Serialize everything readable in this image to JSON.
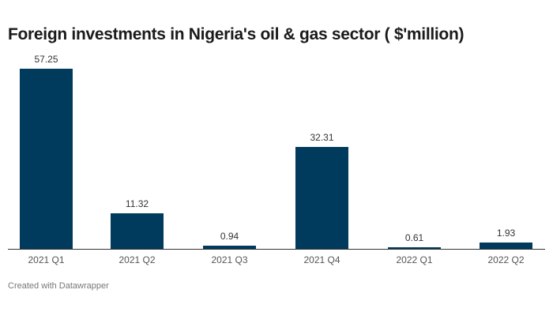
{
  "chart_data": {
    "type": "bar",
    "title": "Foreign investments in Nigeria's oil & gas sector ( $'million)",
    "categories": [
      "2021 Q1",
      "2021 Q2",
      "2021 Q3",
      "2021 Q4",
      "2022 Q1",
      "2022 Q2"
    ],
    "values": [
      57.25,
      11.32,
      0.94,
      32.31,
      0.61,
      1.93
    ],
    "value_labels": [
      "57.25",
      "11.32",
      "0.94",
      "32.31",
      "0.61",
      "1.93"
    ],
    "xlabel": "",
    "ylabel": "",
    "ylim": [
      0,
      57.25
    ],
    "grid": false,
    "legend": null,
    "bar_color": "#003a5d"
  },
  "footer": {
    "credit": "Created with Datawrapper"
  }
}
